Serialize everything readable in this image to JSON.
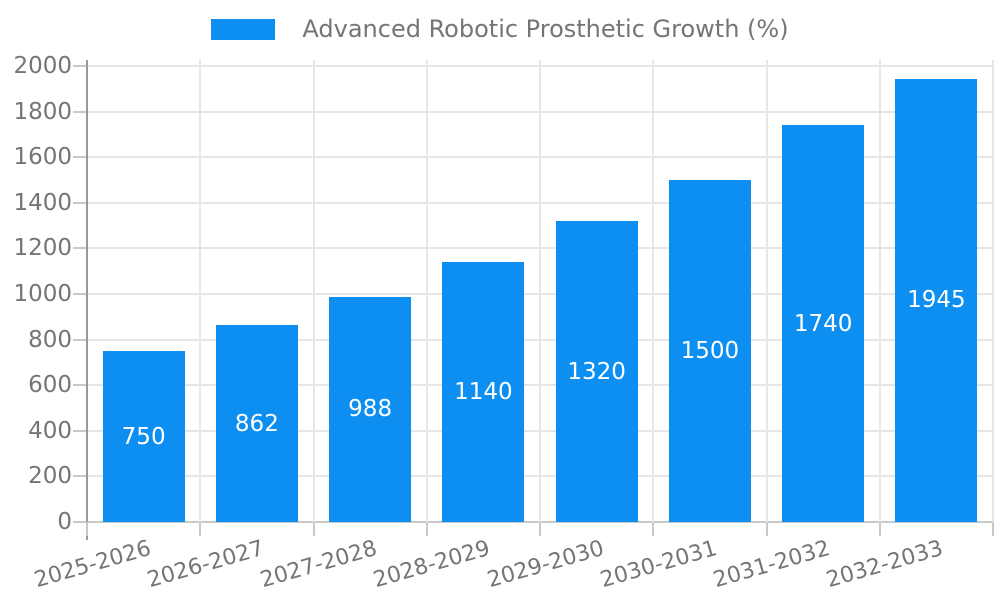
{
  "legend": {
    "position": "top"
  },
  "chart_data": {
    "type": "bar",
    "title": "Advanced Robotic Prosthetic Growth (%)",
    "categories": [
      "2025-2026",
      "2026-2027",
      "2027-2028",
      "2028-2029",
      "2029-2030",
      "2030-2031",
      "2031-2032",
      "2032-2033"
    ],
    "values": [
      750,
      862,
      988,
      1140,
      1320,
      1500,
      1740,
      1945
    ],
    "xlabel": "",
    "ylabel": "",
    "ylim": [
      0,
      2000
    ],
    "ytick_step": 200,
    "yticks": [
      0,
      200,
      400,
      600,
      800,
      1000,
      1200,
      1400,
      1600,
      1800,
      2000
    ],
    "grid": true,
    "legend_position": "top",
    "x_label_rotation_deg": -16,
    "value_labels_inside_bars": true,
    "colors": {
      "bar": "#0d8ff2",
      "value_label": "#ffffff",
      "axis_label": "#757575",
      "gridline": "#e6e6e6",
      "tick": "#c9c9c9",
      "baseline": "#c9c9c9",
      "axis_line": "#999999",
      "background": "#ffffff"
    }
  }
}
